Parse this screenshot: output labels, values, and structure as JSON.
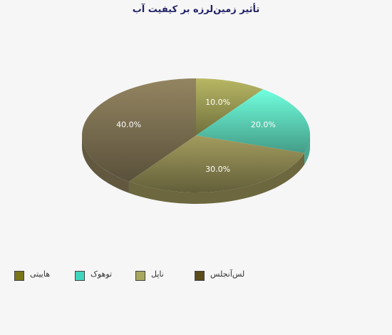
{
  "chart_data": {
    "type": "pie",
    "title": "تأثیر زمین‌لرزه بر کیفیت آب",
    "slices": [
      {
        "label": "هاییتی",
        "value": 10.0,
        "display": "10.0%",
        "color": "#9c9b55"
      },
      {
        "label": "توهوک",
        "value": 20.0,
        "display": "20.0%",
        "color": "#5fd9bc"
      },
      {
        "label": "ناپل",
        "value": 30.0,
        "display": "30.0%",
        "color": "#8a8450"
      },
      {
        "label": "لس‌آنجلس",
        "value": 40.0,
        "display": "40.0%",
        "color": "#7d7152"
      }
    ],
    "legend": [
      {
        "label": "هاییتی",
        "color": "#7a7518"
      },
      {
        "label": "توهوک",
        "color": "#3fd6bd"
      },
      {
        "label": "ناپل",
        "color": "#a8a860"
      },
      {
        "label": "لس‌آنجلس",
        "color": "#5a4a1c"
      }
    ],
    "legend_position": "bottom"
  }
}
